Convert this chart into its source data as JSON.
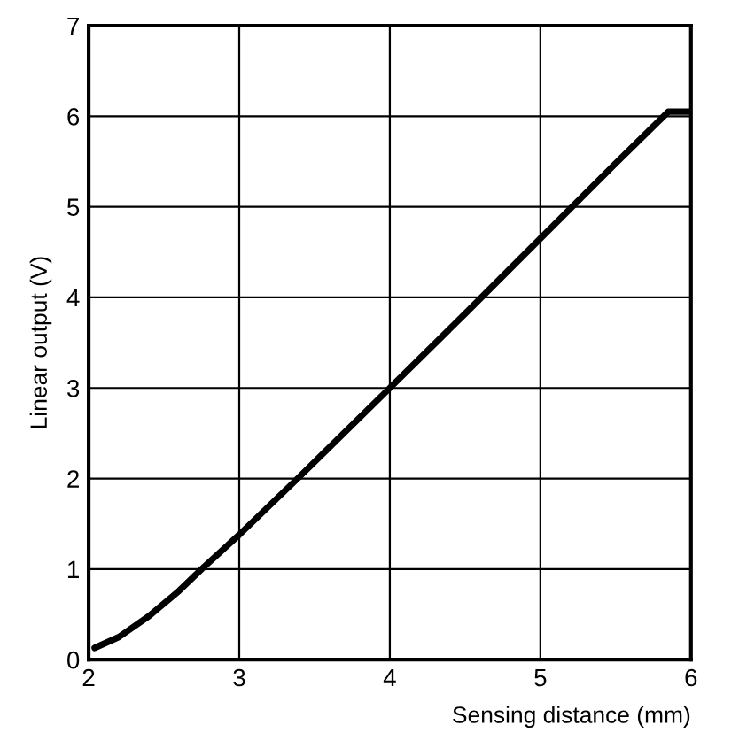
{
  "chart_data": {
    "type": "line",
    "xlabel": "Sensing distance (mm)",
    "ylabel": "Linear output (V)",
    "x": [
      2.04,
      2.2,
      2.4,
      2.6,
      2.75,
      3.0,
      3.4,
      4.0,
      4.5,
      5.0,
      5.5,
      5.85,
      6.0
    ],
    "series": [
      {
        "color": "#000000",
        "values": [
          0.13,
          0.25,
          0.48,
          0.76,
          1.0,
          1.38,
          2.02,
          3.0,
          3.82,
          4.65,
          5.48,
          6.05,
          6.05
        ]
      }
    ],
    "xlim": [
      2,
      6
    ],
    "ylim": [
      0,
      7
    ],
    "xticks": [
      2,
      3,
      4,
      5,
      6
    ],
    "yticks": [
      0,
      1,
      2,
      3,
      4,
      5,
      6,
      7
    ],
    "grid": true
  }
}
